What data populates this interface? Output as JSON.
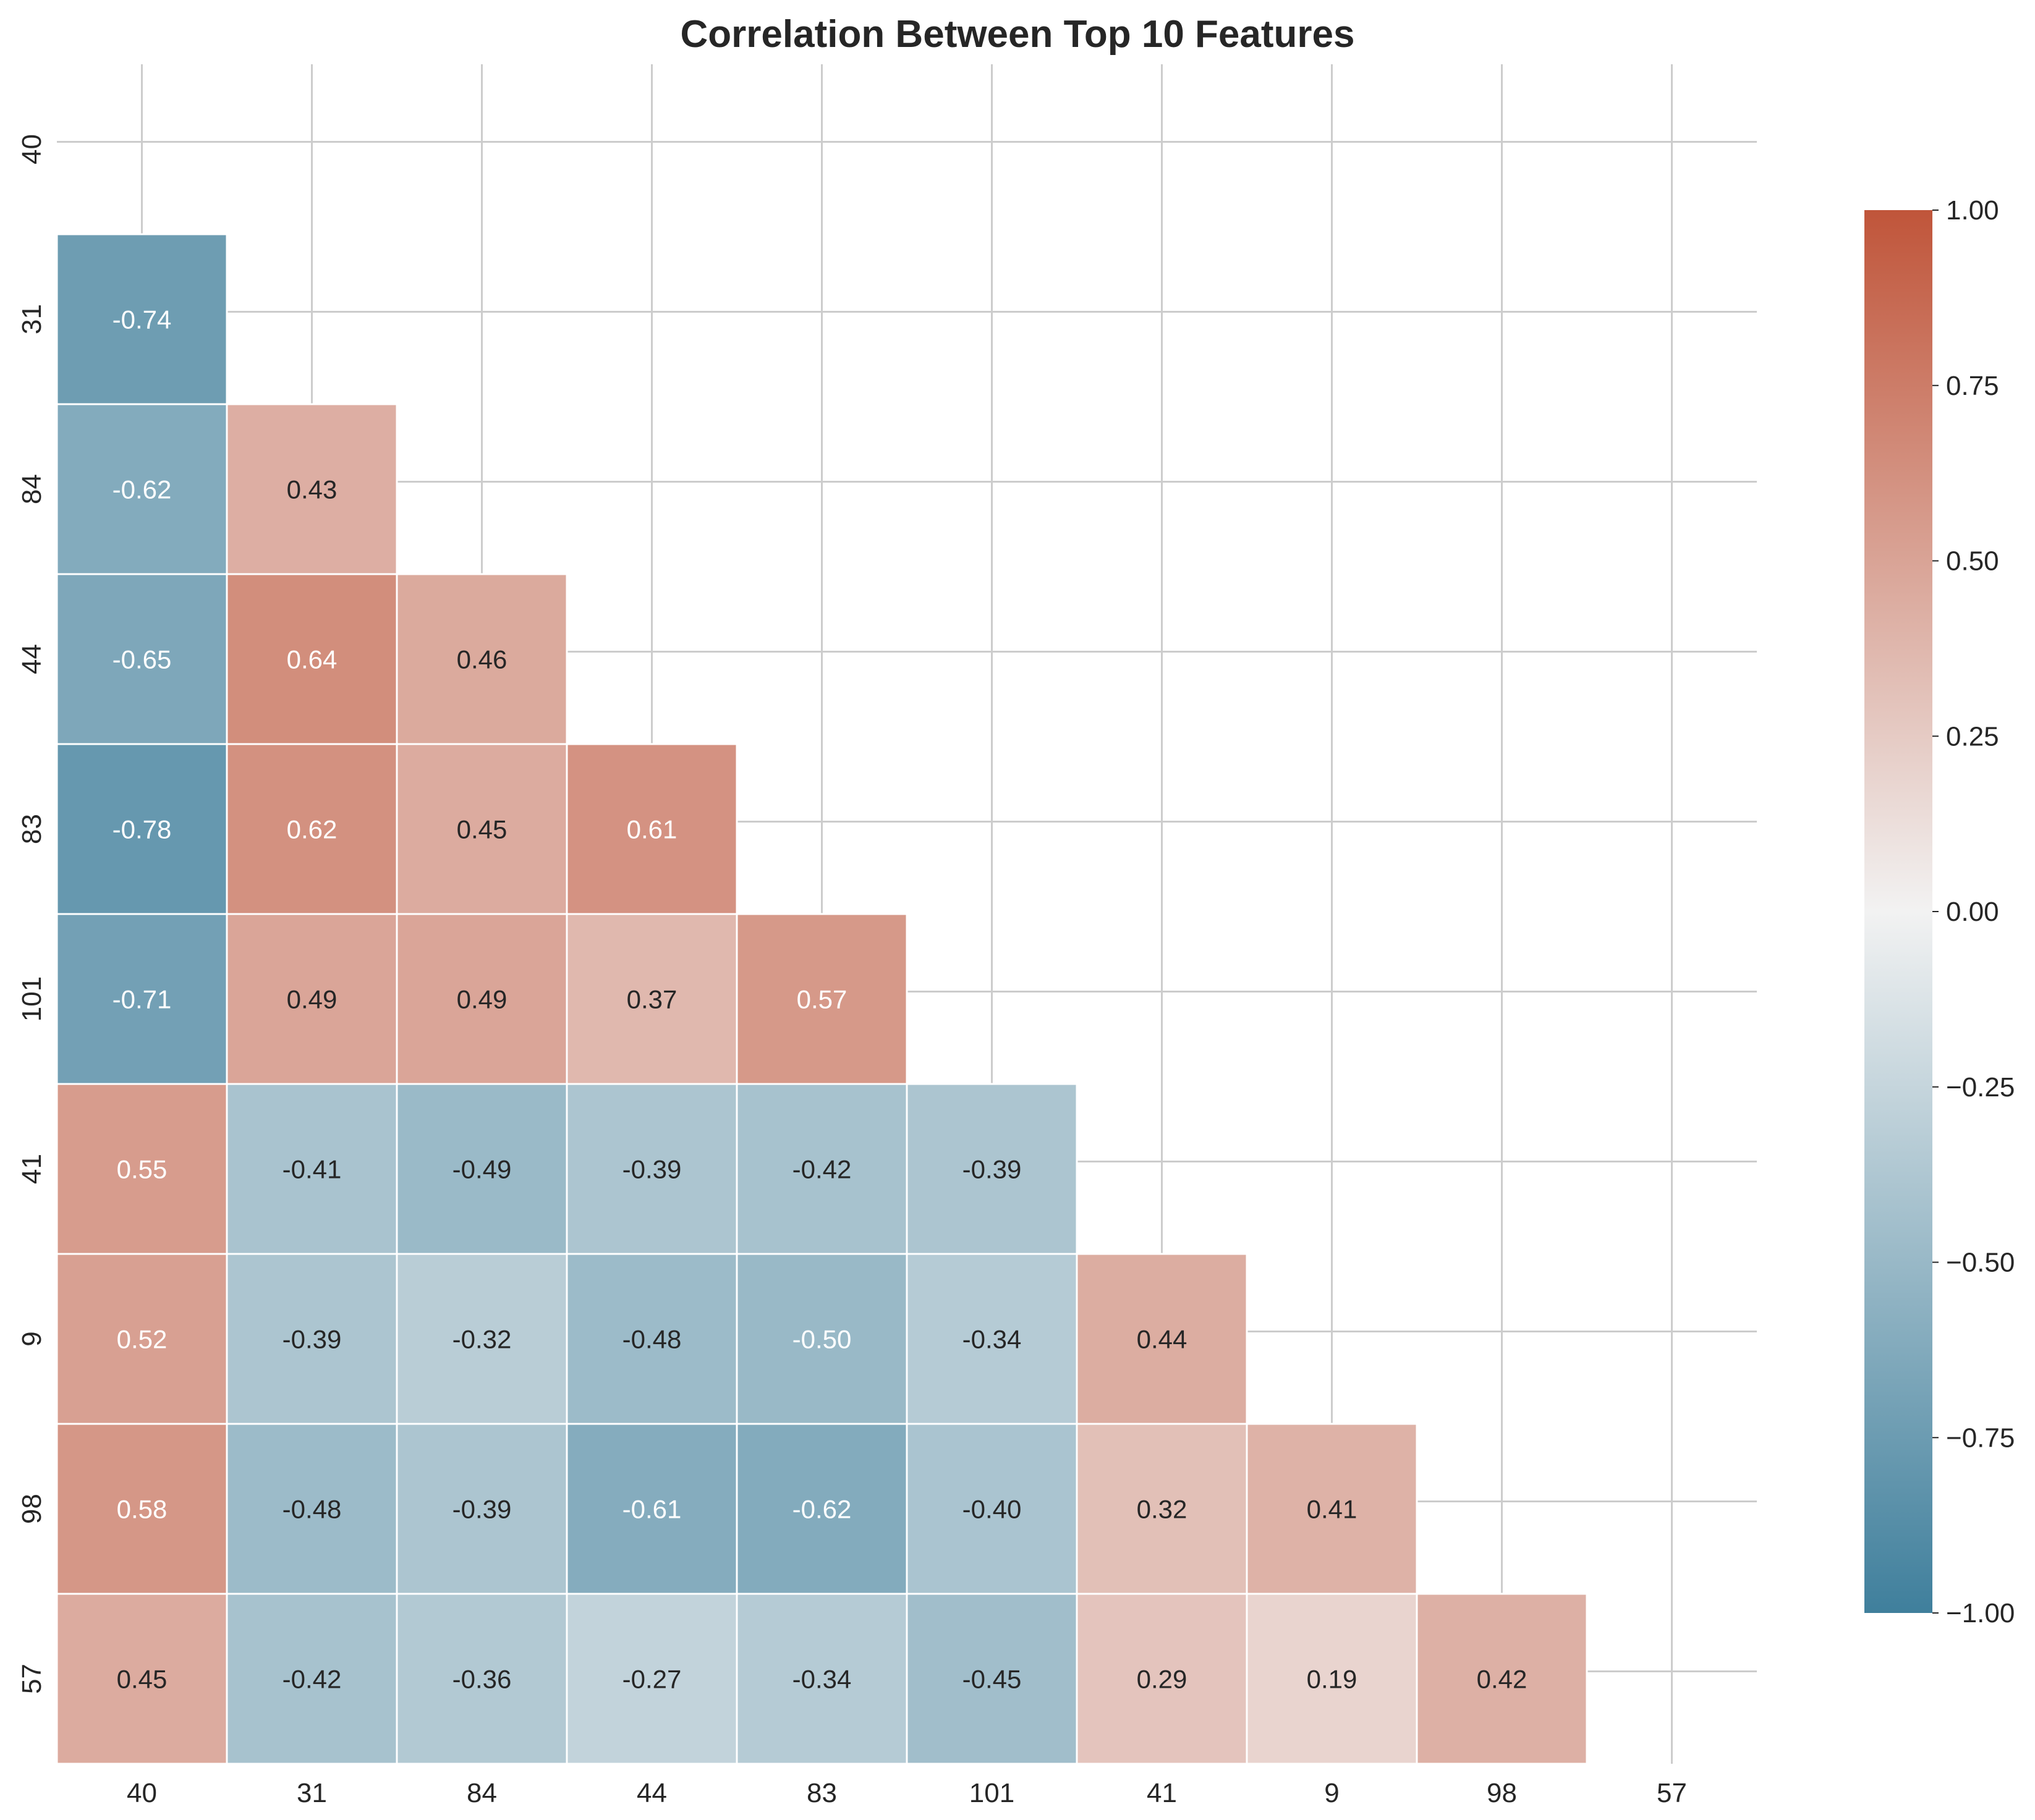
{
  "chart_data": {
    "type": "heatmap",
    "title": "Correlation Between Top 10 Features",
    "xlabel": "",
    "ylabel": "",
    "labels": [
      "40",
      "31",
      "84",
      "44",
      "83",
      "101",
      "41",
      "9",
      "98",
      "57"
    ],
    "mask": "upper-triangle-including-diagonal",
    "matrix": [
      [
        null,
        null,
        null,
        null,
        null,
        null,
        null,
        null,
        null,
        null
      ],
      [
        -0.74,
        null,
        null,
        null,
        null,
        null,
        null,
        null,
        null,
        null
      ],
      [
        -0.62,
        0.43,
        null,
        null,
        null,
        null,
        null,
        null,
        null,
        null
      ],
      [
        -0.65,
        0.64,
        0.46,
        null,
        null,
        null,
        null,
        null,
        null,
        null
      ],
      [
        -0.78,
        0.62,
        0.45,
        0.61,
        null,
        null,
        null,
        null,
        null,
        null
      ],
      [
        -0.71,
        0.49,
        0.49,
        0.37,
        0.57,
        null,
        null,
        null,
        null,
        null
      ],
      [
        0.55,
        -0.41,
        -0.49,
        -0.39,
        -0.42,
        -0.39,
        null,
        null,
        null,
        null
      ],
      [
        0.52,
        -0.39,
        -0.32,
        -0.48,
        -0.5,
        -0.34,
        0.44,
        null,
        null,
        null
      ],
      [
        0.58,
        -0.48,
        -0.39,
        -0.61,
        -0.62,
        -0.4,
        0.32,
        0.41,
        null,
        null
      ],
      [
        0.45,
        -0.42,
        -0.36,
        -0.27,
        -0.34,
        -0.45,
        0.29,
        0.19,
        0.42,
        null
      ]
    ],
    "colorbar": {
      "range": [
        -1,
        1
      ],
      "ticks": [
        "1.00",
        "0.75",
        "0.50",
        "0.25",
        "0.00",
        "−0.25",
        "−0.50",
        "−0.75",
        "−1.00"
      ],
      "tick_values": [
        1,
        0.75,
        0.5,
        0.25,
        0,
        -0.25,
        -0.5,
        -0.75,
        -1
      ],
      "colors": {
        "negative": "#3f7f9c",
        "center": "#f2f2f2",
        "positive": "#c0553a"
      }
    },
    "grid": true,
    "legend": "colorbar-right"
  }
}
